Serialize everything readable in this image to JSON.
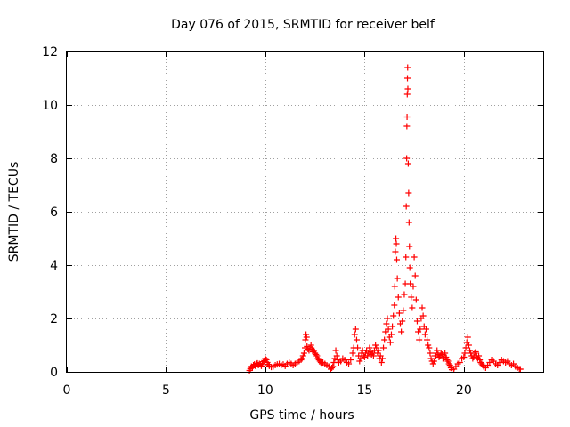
{
  "chart_data": {
    "type": "scatter",
    "title": "Day 076 of 2015, SRMTID for receiver belf",
    "xlabel": "GPS time / hours",
    "ylabel": "SRMTID / TECUs",
    "xlim": [
      0,
      24
    ],
    "ylim": [
      0,
      12
    ],
    "x_ticks": [
      0,
      5,
      10,
      15,
      20
    ],
    "x_tick_labels": [
      "0",
      "5",
      "10",
      "15",
      "20"
    ],
    "y_ticks": [
      0,
      2,
      4,
      6,
      8,
      10,
      12
    ],
    "y_tick_labels": [
      "0",
      "2",
      "4",
      "6",
      "8",
      "10",
      "12"
    ],
    "grid": true,
    "marker": "plus",
    "marker_color": "#ff0000",
    "series": [
      {
        "name": "SRMTID",
        "points": [
          [
            9.2,
            0.05
          ],
          [
            9.25,
            0.12
          ],
          [
            9.3,
            0.2
          ],
          [
            9.35,
            0.15
          ],
          [
            9.4,
            0.25
          ],
          [
            9.45,
            0.28
          ],
          [
            9.5,
            0.22
          ],
          [
            9.55,
            0.3
          ],
          [
            9.6,
            0.32
          ],
          [
            9.65,
            0.25
          ],
          [
            9.7,
            0.3
          ],
          [
            9.75,
            0.28
          ],
          [
            9.8,
            0.22
          ],
          [
            9.85,
            0.3
          ],
          [
            9.9,
            0.38
          ],
          [
            9.95,
            0.42
          ],
          [
            10.0,
            0.5
          ],
          [
            10.05,
            0.45
          ],
          [
            10.1,
            0.35
          ],
          [
            10.15,
            0.28
          ],
          [
            10.2,
            0.22
          ],
          [
            10.3,
            0.18
          ],
          [
            10.4,
            0.2
          ],
          [
            10.5,
            0.25
          ],
          [
            10.6,
            0.28
          ],
          [
            10.7,
            0.3
          ],
          [
            10.8,
            0.25
          ],
          [
            10.9,
            0.28
          ],
          [
            11.0,
            0.22
          ],
          [
            11.1,
            0.3
          ],
          [
            11.2,
            0.35
          ],
          [
            11.3,
            0.3
          ],
          [
            11.4,
            0.25
          ],
          [
            11.5,
            0.3
          ],
          [
            11.6,
            0.35
          ],
          [
            11.7,
            0.4
          ],
          [
            11.8,
            0.45
          ],
          [
            11.85,
            0.5
          ],
          [
            11.9,
            0.6
          ],
          [
            11.95,
            0.7
          ],
          [
            12.0,
            0.9
          ],
          [
            12.02,
            1.2
          ],
          [
            12.05,
            1.4
          ],
          [
            12.08,
            1.3
          ],
          [
            12.1,
            0.95
          ],
          [
            12.15,
            0.85
          ],
          [
            12.2,
            0.8
          ],
          [
            12.25,
            0.9
          ],
          [
            12.3,
            1.0
          ],
          [
            12.35,
            0.85
          ],
          [
            12.4,
            0.75
          ],
          [
            12.45,
            0.8
          ],
          [
            12.5,
            0.7
          ],
          [
            12.55,
            0.65
          ],
          [
            12.6,
            0.6
          ],
          [
            12.65,
            0.5
          ],
          [
            12.7,
            0.45
          ],
          [
            12.75,
            0.4
          ],
          [
            12.8,
            0.35
          ],
          [
            12.85,
            0.3
          ],
          [
            12.9,
            0.35
          ],
          [
            13.0,
            0.3
          ],
          [
            13.1,
            0.25
          ],
          [
            13.2,
            0.2
          ],
          [
            13.3,
            0.1
          ],
          [
            13.35,
            0.15
          ],
          [
            13.4,
            0.2
          ],
          [
            13.45,
            0.35
          ],
          [
            13.5,
            0.5
          ],
          [
            13.55,
            0.8
          ],
          [
            13.6,
            0.6
          ],
          [
            13.65,
            0.45
          ],
          [
            13.7,
            0.35
          ],
          [
            13.8,
            0.4
          ],
          [
            13.9,
            0.5
          ],
          [
            14.0,
            0.45
          ],
          [
            14.1,
            0.35
          ],
          [
            14.2,
            0.3
          ],
          [
            14.3,
            0.45
          ],
          [
            14.4,
            0.7
          ],
          [
            14.45,
            0.9
          ],
          [
            14.5,
            1.4
          ],
          [
            14.55,
            1.6
          ],
          [
            14.6,
            1.2
          ],
          [
            14.65,
            0.9
          ],
          [
            14.7,
            0.6
          ],
          [
            14.75,
            0.4
          ],
          [
            14.8,
            0.5
          ],
          [
            14.85,
            0.7
          ],
          [
            14.9,
            0.8
          ],
          [
            14.95,
            0.6
          ],
          [
            15.0,
            0.55
          ],
          [
            15.05,
            0.7
          ],
          [
            15.1,
            0.8
          ],
          [
            15.15,
            0.6
          ],
          [
            15.2,
            0.7
          ],
          [
            15.25,
            0.9
          ],
          [
            15.3,
            0.75
          ],
          [
            15.35,
            0.65
          ],
          [
            15.4,
            0.7
          ],
          [
            15.45,
            0.6
          ],
          [
            15.5,
            0.8
          ],
          [
            15.55,
            1.0
          ],
          [
            15.6,
            0.9
          ],
          [
            15.65,
            0.7
          ],
          [
            15.7,
            0.8
          ],
          [
            15.75,
            0.5
          ],
          [
            15.8,
            0.6
          ],
          [
            15.85,
            0.35
          ],
          [
            15.9,
            0.5
          ],
          [
            15.95,
            0.9
          ],
          [
            16.0,
            1.2
          ],
          [
            16.05,
            1.5
          ],
          [
            16.1,
            1.8
          ],
          [
            16.15,
            2.0
          ],
          [
            16.2,
            1.6
          ],
          [
            16.25,
            1.3
          ],
          [
            16.3,
            1.1
          ],
          [
            16.35,
            1.4
          ],
          [
            16.4,
            1.7
          ],
          [
            16.45,
            2.1
          ],
          [
            16.5,
            2.5
          ],
          [
            16.52,
            3.2
          ],
          [
            16.55,
            4.5
          ],
          [
            16.58,
            5.0
          ],
          [
            16.6,
            4.8
          ],
          [
            16.62,
            4.2
          ],
          [
            16.65,
            3.5
          ],
          [
            16.7,
            2.8
          ],
          [
            16.75,
            2.2
          ],
          [
            16.8,
            1.8
          ],
          [
            16.85,
            1.5
          ],
          [
            16.9,
            1.9
          ],
          [
            16.95,
            2.3
          ],
          [
            17.0,
            2.9
          ],
          [
            17.05,
            3.3
          ],
          [
            17.08,
            4.3
          ],
          [
            17.1,
            6.2
          ],
          [
            17.12,
            8.0
          ],
          [
            17.13,
            9.2
          ],
          [
            17.14,
            9.55
          ],
          [
            17.15,
            10.4
          ],
          [
            17.16,
            11.0
          ],
          [
            17.17,
            11.4
          ],
          [
            17.18,
            10.6
          ],
          [
            17.2,
            7.8
          ],
          [
            17.22,
            6.7
          ],
          [
            17.24,
            5.6
          ],
          [
            17.26,
            4.7
          ],
          [
            17.28,
            3.9
          ],
          [
            17.3,
            3.3
          ],
          [
            17.35,
            2.8
          ],
          [
            17.4,
            2.4
          ],
          [
            17.45,
            3.2
          ],
          [
            17.5,
            4.3
          ],
          [
            17.55,
            3.6
          ],
          [
            17.6,
            2.7
          ],
          [
            17.65,
            1.9
          ],
          [
            17.7,
            1.5
          ],
          [
            17.75,
            1.2
          ],
          [
            17.8,
            1.6
          ],
          [
            17.85,
            2.0
          ],
          [
            17.9,
            2.4
          ],
          [
            17.95,
            2.1
          ],
          [
            18.0,
            1.7
          ],
          [
            18.05,
            1.4
          ],
          [
            18.1,
            1.6
          ],
          [
            18.15,
            1.2
          ],
          [
            18.2,
            1.0
          ],
          [
            18.25,
            0.9
          ],
          [
            18.3,
            0.7
          ],
          [
            18.35,
            0.5
          ],
          [
            18.4,
            0.4
          ],
          [
            18.45,
            0.3
          ],
          [
            18.5,
            0.4
          ],
          [
            18.55,
            0.6
          ],
          [
            18.6,
            0.7
          ],
          [
            18.65,
            0.8
          ],
          [
            18.7,
            0.65
          ],
          [
            18.75,
            0.55
          ],
          [
            18.8,
            0.6
          ],
          [
            18.85,
            0.7
          ],
          [
            18.9,
            0.65
          ],
          [
            18.95,
            0.5
          ],
          [
            19.0,
            0.6
          ],
          [
            19.05,
            0.7
          ],
          [
            19.1,
            0.55
          ],
          [
            19.15,
            0.45
          ],
          [
            19.2,
            0.4
          ],
          [
            19.25,
            0.3
          ],
          [
            19.3,
            0.25
          ],
          [
            19.35,
            0.15
          ],
          [
            19.4,
            0.08
          ],
          [
            19.5,
            0.1
          ],
          [
            19.6,
            0.2
          ],
          [
            19.7,
            0.3
          ],
          [
            19.8,
            0.35
          ],
          [
            19.9,
            0.5
          ],
          [
            20.0,
            0.55
          ],
          [
            20.05,
            0.7
          ],
          [
            20.1,
            0.9
          ],
          [
            20.15,
            1.1
          ],
          [
            20.2,
            1.3
          ],
          [
            20.25,
            1.0
          ],
          [
            20.3,
            0.8
          ],
          [
            20.35,
            0.7
          ],
          [
            20.4,
            0.6
          ],
          [
            20.45,
            0.5
          ],
          [
            20.5,
            0.55
          ],
          [
            20.55,
            0.7
          ],
          [
            20.6,
            0.75
          ],
          [
            20.65,
            0.6
          ],
          [
            20.7,
            0.5
          ],
          [
            20.75,
            0.6
          ],
          [
            20.8,
            0.45
          ],
          [
            20.85,
            0.35
          ],
          [
            20.9,
            0.3
          ],
          [
            20.95,
            0.25
          ],
          [
            21.0,
            0.2
          ],
          [
            21.1,
            0.15
          ],
          [
            21.2,
            0.25
          ],
          [
            21.3,
            0.35
          ],
          [
            21.4,
            0.45
          ],
          [
            21.5,
            0.4
          ],
          [
            21.6,
            0.3
          ],
          [
            21.7,
            0.25
          ],
          [
            21.8,
            0.35
          ],
          [
            21.9,
            0.45
          ],
          [
            22.0,
            0.4
          ],
          [
            22.1,
            0.35
          ],
          [
            22.2,
            0.4
          ],
          [
            22.3,
            0.3
          ],
          [
            22.4,
            0.25
          ],
          [
            22.5,
            0.3
          ],
          [
            22.6,
            0.2
          ],
          [
            22.7,
            0.15
          ],
          [
            22.8,
            0.1
          ],
          [
            22.85,
            0.1
          ]
        ]
      }
    ]
  }
}
